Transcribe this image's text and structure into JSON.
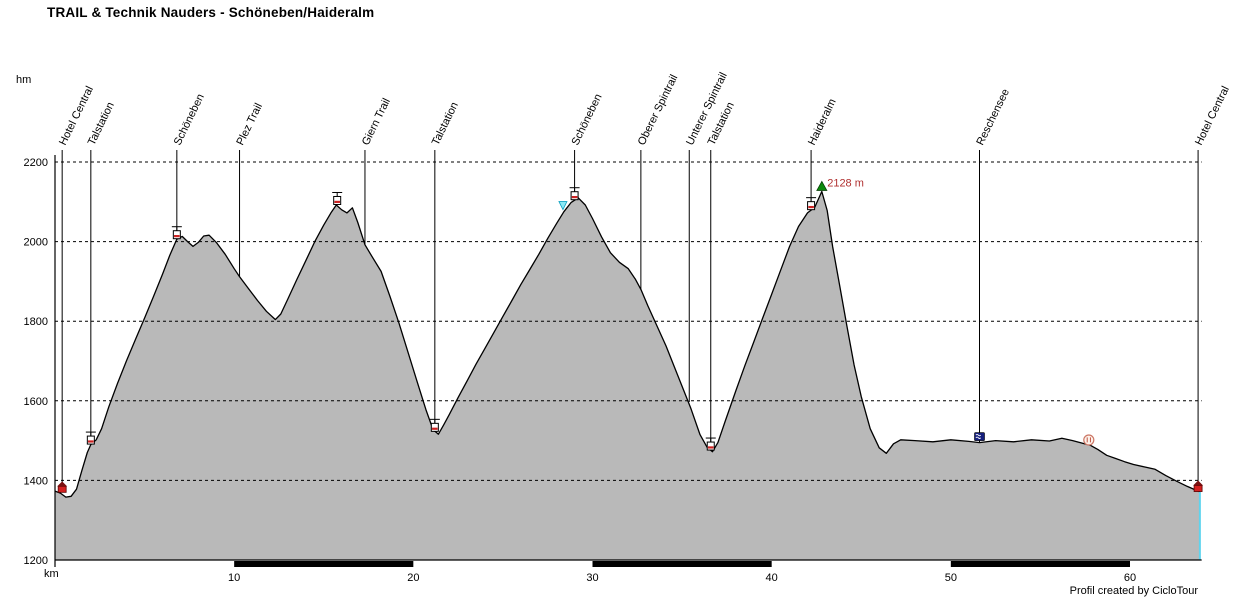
{
  "footer": {
    "credit": "Profil created by CicloTour"
  },
  "chart_data": {
    "type": "area",
    "title": "TRAIL & Technik Nauders - Schöneben/Haideralm",
    "xlabel": "km",
    "ylabel": "hm",
    "xlim": [
      0,
      64
    ],
    "ylim": [
      1200,
      2200
    ],
    "x_ticks": [
      10,
      20,
      30,
      40,
      50,
      60
    ],
    "y_ticks": [
      1200,
      1400,
      1600,
      1800,
      2000,
      2200
    ],
    "grid": "horizontal-dashed",
    "legend": "none",
    "fill_color": "#b9b9b9",
    "line_color": "#000000",
    "end_marker_color": "#5fd4ee",
    "annotation": {
      "text": "2128 m",
      "km": 43.1,
      "elevation": 2128,
      "color": "#b03030"
    },
    "km_bar_segments": [
      [
        10,
        20
      ],
      [
        30,
        40
      ],
      [
        50,
        60
      ]
    ],
    "waypoints": [
      {
        "km": 0.4,
        "label": "Hotel Central",
        "elevation": 1370,
        "icon": "house"
      },
      {
        "km": 2.0,
        "label": "Talstation",
        "elevation": 1490,
        "icon": "gondola"
      },
      {
        "km": 6.8,
        "label": "Schöneben",
        "elevation": 2006,
        "icon": "gondola"
      },
      {
        "km": 10.3,
        "label": "Plez Trail",
        "elevation": 1912,
        "icon": null
      },
      {
        "km": 17.3,
        "label": "Giern Trail",
        "elevation": 1992,
        "icon": null
      },
      {
        "km": 21.2,
        "label": "Talstation",
        "elevation": 1522,
        "icon": "gondola"
      },
      {
        "km": 29.0,
        "label": "Schöneben",
        "elevation": 2104,
        "icon": "gondola"
      },
      {
        "km": 32.7,
        "label": "Oberer Spintrail",
        "elevation": 1880,
        "icon": null
      },
      {
        "km": 35.4,
        "label": "Unterer Spintrail",
        "elevation": 1597,
        "icon": null
      },
      {
        "km": 36.6,
        "label": "Talstation",
        "elevation": 1475,
        "icon": "gondola"
      },
      {
        "km": 42.2,
        "label": "Haideralm",
        "elevation": 2079,
        "icon": "gondola"
      },
      {
        "km": 51.6,
        "label": "Reschensee",
        "elevation": 1495,
        "icon": "lake"
      },
      {
        "km": 63.8,
        "label": "Hotel Central",
        "elevation": 1372,
        "icon": "house"
      }
    ],
    "extra_markers": [
      {
        "km": 15.75,
        "elevation": 2092,
        "icon": "gondola"
      },
      {
        "km": 28.35,
        "elevation": 2078,
        "icon": "flag"
      },
      {
        "km": 42.8,
        "elevation": 2126,
        "icon": "summit"
      },
      {
        "km": 57.7,
        "elevation": 1489,
        "icon": "restaurant"
      }
    ],
    "profile": [
      [
        0,
        1373
      ],
      [
        0.3,
        1368
      ],
      [
        0.6,
        1358
      ],
      [
        0.9,
        1360
      ],
      [
        1.2,
        1378
      ],
      [
        1.5,
        1425
      ],
      [
        1.8,
        1470
      ],
      [
        2,
        1490
      ],
      [
        2.3,
        1502
      ],
      [
        2.6,
        1530
      ],
      [
        3,
        1585
      ],
      [
        3.5,
        1645
      ],
      [
        4,
        1702
      ],
      [
        4.5,
        1755
      ],
      [
        5,
        1808
      ],
      [
        5.5,
        1862
      ],
      [
        6,
        1918
      ],
      [
        6.4,
        1965
      ],
      [
        6.8,
        2006
      ],
      [
        7.1,
        2013
      ],
      [
        7.4,
        2000
      ],
      [
        7.7,
        1988
      ],
      [
        8,
        1998
      ],
      [
        8.3,
        2014
      ],
      [
        8.6,
        2016
      ],
      [
        9,
        1998
      ],
      [
        9.5,
        1968
      ],
      [
        10,
        1932
      ],
      [
        10.3,
        1912
      ],
      [
        10.8,
        1882
      ],
      [
        11.3,
        1852
      ],
      [
        11.8,
        1825
      ],
      [
        12.3,
        1804
      ],
      [
        12.6,
        1818
      ],
      [
        13,
        1856
      ],
      [
        13.5,
        1905
      ],
      [
        14,
        1952
      ],
      [
        14.5,
        2000
      ],
      [
        15,
        2042
      ],
      [
        15.4,
        2072
      ],
      [
        15.7,
        2092
      ],
      [
        16,
        2080
      ],
      [
        16.3,
        2072
      ],
      [
        16.6,
        2085
      ],
      [
        16.9,
        2048
      ],
      [
        17.3,
        1992
      ],
      [
        17.7,
        1962
      ],
      [
        18.2,
        1925
      ],
      [
        18.7,
        1862
      ],
      [
        19.2,
        1795
      ],
      [
        19.7,
        1722
      ],
      [
        20.2,
        1650
      ],
      [
        20.7,
        1578
      ],
      [
        21.1,
        1528
      ],
      [
        21.4,
        1516
      ],
      [
        21.7,
        1540
      ],
      [
        22,
        1565
      ],
      [
        22.5,
        1608
      ],
      [
        23,
        1650
      ],
      [
        23.5,
        1692
      ],
      [
        24,
        1732
      ],
      [
        24.5,
        1772
      ],
      [
        25,
        1812
      ],
      [
        25.5,
        1852
      ],
      [
        26,
        1892
      ],
      [
        26.5,
        1930
      ],
      [
        27,
        1968
      ],
      [
        27.5,
        2008
      ],
      [
        28,
        2046
      ],
      [
        28.4,
        2075
      ],
      [
        28.8,
        2098
      ],
      [
        29.2,
        2110
      ],
      [
        29.6,
        2092
      ],
      [
        30,
        2058
      ],
      [
        30.5,
        2012
      ],
      [
        31,
        1972
      ],
      [
        31.5,
        1948
      ],
      [
        32,
        1932
      ],
      [
        32.4,
        1905
      ],
      [
        32.7,
        1880
      ],
      [
        33.1,
        1838
      ],
      [
        33.6,
        1788
      ],
      [
        34.1,
        1738
      ],
      [
        34.6,
        1682
      ],
      [
        35.1,
        1625
      ],
      [
        35.5,
        1580
      ],
      [
        36,
        1515
      ],
      [
        36.4,
        1483
      ],
      [
        36.7,
        1472
      ],
      [
        37,
        1495
      ],
      [
        37.4,
        1548
      ],
      [
        38,
        1625
      ],
      [
        38.5,
        1688
      ],
      [
        39,
        1748
      ],
      [
        39.5,
        1808
      ],
      [
        40,
        1868
      ],
      [
        40.5,
        1928
      ],
      [
        41,
        1988
      ],
      [
        41.5,
        2038
      ],
      [
        42,
        2072
      ],
      [
        42.4,
        2086
      ],
      [
        42.8,
        2126
      ],
      [
        43.1,
        2078
      ],
      [
        43.4,
        1988
      ],
      [
        43.8,
        1888
      ],
      [
        44.2,
        1788
      ],
      [
        44.6,
        1690
      ],
      [
        45,
        1610
      ],
      [
        45.5,
        1530
      ],
      [
        46,
        1482
      ],
      [
        46.4,
        1468
      ],
      [
        46.8,
        1492
      ],
      [
        47.2,
        1502
      ],
      [
        48,
        1500
      ],
      [
        49,
        1497
      ],
      [
        50,
        1502
      ],
      [
        51,
        1498
      ],
      [
        51.6,
        1495
      ],
      [
        52.5,
        1500
      ],
      [
        53.5,
        1497
      ],
      [
        54.5,
        1502
      ],
      [
        55.5,
        1499
      ],
      [
        56.2,
        1506
      ],
      [
        56.8,
        1500
      ],
      [
        57.3,
        1494
      ],
      [
        57.8,
        1488
      ],
      [
        58.2,
        1478
      ],
      [
        58.7,
        1463
      ],
      [
        59.2,
        1455
      ],
      [
        59.7,
        1447
      ],
      [
        60.2,
        1440
      ],
      [
        60.8,
        1434
      ],
      [
        61.4,
        1428
      ],
      [
        62,
        1412
      ],
      [
        62.6,
        1398
      ],
      [
        63.2,
        1385
      ],
      [
        63.9,
        1371
      ]
    ]
  }
}
